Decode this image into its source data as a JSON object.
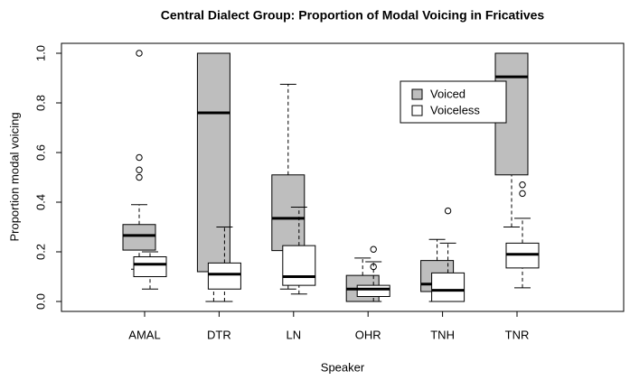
{
  "chart_data": {
    "type": "boxplot",
    "title": "Central Dialect Group: Proportion of Modal Voicing in Fricatives",
    "x_label": "Speaker",
    "y_label": "Proportion modal voicing",
    "categories": [
      "AMAL",
      "DTR",
      "LN",
      "OHR",
      "TNH",
      "TNR"
    ],
    "ylim": [
      -0.04,
      1.04
    ],
    "yticks": [
      {
        "value": 0,
        "label": "0.0"
      },
      0.2,
      0.4,
      0.6,
      0.8,
      {
        "value": 1,
        "label": "1.0"
      }
    ],
    "legend": "top-right",
    "series": [
      {
        "name": "Voiced",
        "color": "#bebebe",
        "boxes": [
          {
            "low": 0.13,
            "q1": 0.207,
            "median": 0.266,
            "q3": 0.31,
            "high": 0.39,
            "outliers": [
              1.0,
              0.58,
              0.53,
              0.5
            ]
          },
          {
            "low": 0.0,
            "q1": 0.12,
            "median": 0.76,
            "q3": 1.0,
            "high": 1.0,
            "outliers": []
          },
          {
            "low": 0.05,
            "q1": 0.205,
            "median": 0.335,
            "q3": 0.51,
            "high": 0.875,
            "outliers": []
          },
          {
            "low": 0.0,
            "q1": 0.0,
            "median": 0.05,
            "q3": 0.105,
            "high": 0.175,
            "outliers": []
          },
          {
            "low": 0.0,
            "q1": 0.04,
            "median": 0.07,
            "q3": 0.165,
            "high": 0.25,
            "outliers": []
          },
          {
            "low": 0.3,
            "q1": 0.51,
            "median": 0.905,
            "q3": 1.0,
            "high": 1.0,
            "outliers": []
          }
        ]
      },
      {
        "name": "Voiceless",
        "color": "#ffffff",
        "boxes": [
          {
            "low": 0.05,
            "q1": 0.1,
            "median": 0.15,
            "q3": 0.18,
            "high": 0.2,
            "outliers": []
          },
          {
            "low": 0.0,
            "q1": 0.05,
            "median": 0.11,
            "q3": 0.155,
            "high": 0.3,
            "outliers": []
          },
          {
            "low": 0.03,
            "q1": 0.065,
            "median": 0.1,
            "q3": 0.225,
            "high": 0.38,
            "outliers": []
          },
          {
            "low": 0.0,
            "q1": 0.02,
            "median": 0.05,
            "q3": 0.065,
            "high": 0.16,
            "outliers": [
              0.21,
              0.14
            ]
          },
          {
            "low": 0.0,
            "q1": 0.0,
            "median": 0.045,
            "q3": 0.115,
            "high": 0.235,
            "outliers": [
              0.365
            ]
          },
          {
            "low": 0.055,
            "q1": 0.135,
            "median": 0.19,
            "q3": 0.235,
            "high": 0.335,
            "outliers": [
              0.47,
              0.435
            ]
          }
        ]
      }
    ]
  }
}
